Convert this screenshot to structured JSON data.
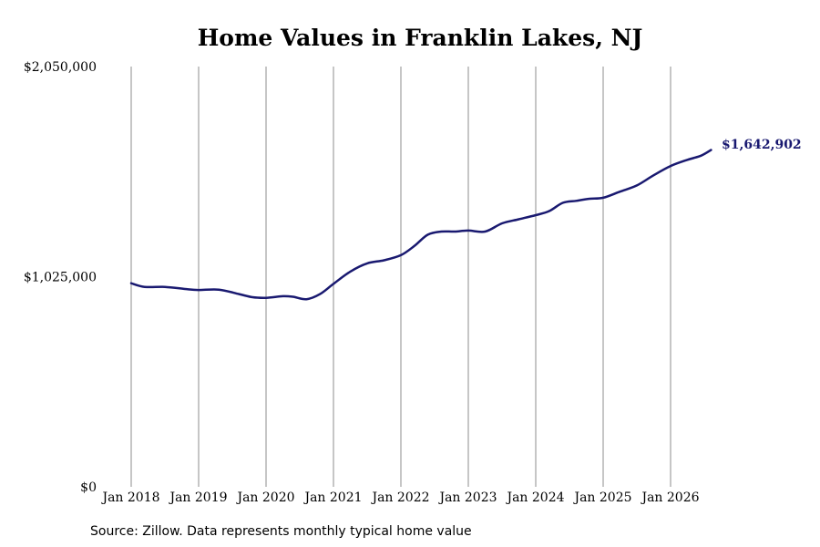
{
  "chart_data": {
    "type": "line",
    "title": "Home Values in Franklin Lakes, NJ",
    "source": "Source: Zillow. Data represents monthly typical home value",
    "ylim": [
      0,
      2050000
    ],
    "y_ticks": [
      {
        "value": 0,
        "label": "$0"
      },
      {
        "value": 1025000,
        "label": "$1,025,000"
      },
      {
        "value": 2050000,
        "label": "$2,050,000"
      }
    ],
    "x_ticks": [
      {
        "value": 2018,
        "label": "Jan 2018"
      },
      {
        "value": 2019,
        "label": "Jan 2019"
      },
      {
        "value": 2020,
        "label": "Jan 2020"
      },
      {
        "value": 2021,
        "label": "Jan 2021"
      },
      {
        "value": 2022,
        "label": "Jan 2022"
      },
      {
        "value": 2023,
        "label": "Jan 2023"
      },
      {
        "value": 2024,
        "label": "Jan 2024"
      },
      {
        "value": 2025,
        "label": "Jan 2025"
      },
      {
        "value": 2026,
        "label": "Jan 2026"
      }
    ],
    "xlim": [
      2018,
      2026.6
    ],
    "grid": "vertical",
    "line_color": "#191970",
    "end_label": "$1,642,902",
    "series": [
      {
        "x": [
          2018.0,
          2018.2,
          2018.5,
          2018.8,
          2019.0,
          2019.3,
          2019.6,
          2019.8,
          2020.0,
          2020.25,
          2020.4,
          2020.6,
          2020.8,
          2021.0,
          2021.25,
          2021.5,
          2021.75,
          2022.0,
          2022.2,
          2022.4,
          2022.6,
          2022.8,
          2023.0,
          2023.25,
          2023.5,
          2023.75,
          2024.0,
          2024.2,
          2024.4,
          2024.6,
          2024.8,
          2025.0,
          2025.25,
          2025.5,
          2025.75,
          2026.0,
          2026.25,
          2026.45,
          2026.6
        ],
        "y": [
          993000,
          975000,
          975000,
          965000,
          960000,
          962000,
          940000,
          925000,
          922000,
          930000,
          927000,
          915000,
          940000,
          990000,
          1050000,
          1090000,
          1105000,
          1130000,
          1175000,
          1230000,
          1245000,
          1245000,
          1250000,
          1245000,
          1285000,
          1305000,
          1325000,
          1345000,
          1385000,
          1395000,
          1405000,
          1410000,
          1440000,
          1470000,
          1520000,
          1565000,
          1595000,
          1615000,
          1642902
        ]
      }
    ]
  }
}
